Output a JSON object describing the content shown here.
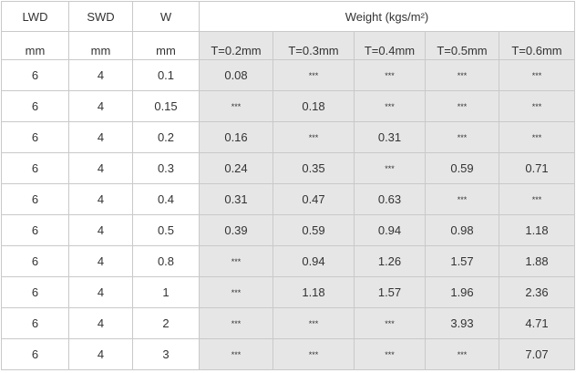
{
  "table": {
    "header": [
      "LWD",
      "SWD",
      "W",
      "Weight (kgs/m²)"
    ],
    "units": [
      "mm",
      "mm",
      "mm",
      "T=0.2mm",
      "T=0.3mm",
      "T=0.4mm",
      "T=0.5mm",
      "T=0.6mm"
    ],
    "rows": [
      [
        "6",
        "4",
        "0.1",
        "0.08",
        "***",
        "***",
        "***",
        "***"
      ],
      [
        "6",
        "4",
        "0.15",
        "***",
        "0.18",
        "***",
        "***",
        "***"
      ],
      [
        "6",
        "4",
        "0.2",
        "0.16",
        "***",
        "0.31",
        "***",
        "***"
      ],
      [
        "6",
        "4",
        "0.3",
        "0.24",
        "0.35",
        "***",
        "0.59",
        "0.71"
      ],
      [
        "6",
        "4",
        "0.4",
        "0.31",
        "0.47",
        "0.63",
        "***",
        "***"
      ],
      [
        "6",
        "4",
        "0.5",
        "0.39",
        "0.59",
        "0.94",
        "0.98",
        "1.18"
      ],
      [
        "6",
        "4",
        "0.8",
        "***",
        "0.94",
        "1.26",
        "1.57",
        "1.88"
      ],
      [
        "6",
        "4",
        "1",
        "***",
        "1.18",
        "1.57",
        "1.96",
        "2.36"
      ],
      [
        "6",
        "4",
        "2",
        "***",
        "***",
        "***",
        "3.93",
        "4.71"
      ],
      [
        "6",
        "4",
        "3",
        "***",
        "***",
        "***",
        "***",
        "7.07"
      ]
    ]
  }
}
